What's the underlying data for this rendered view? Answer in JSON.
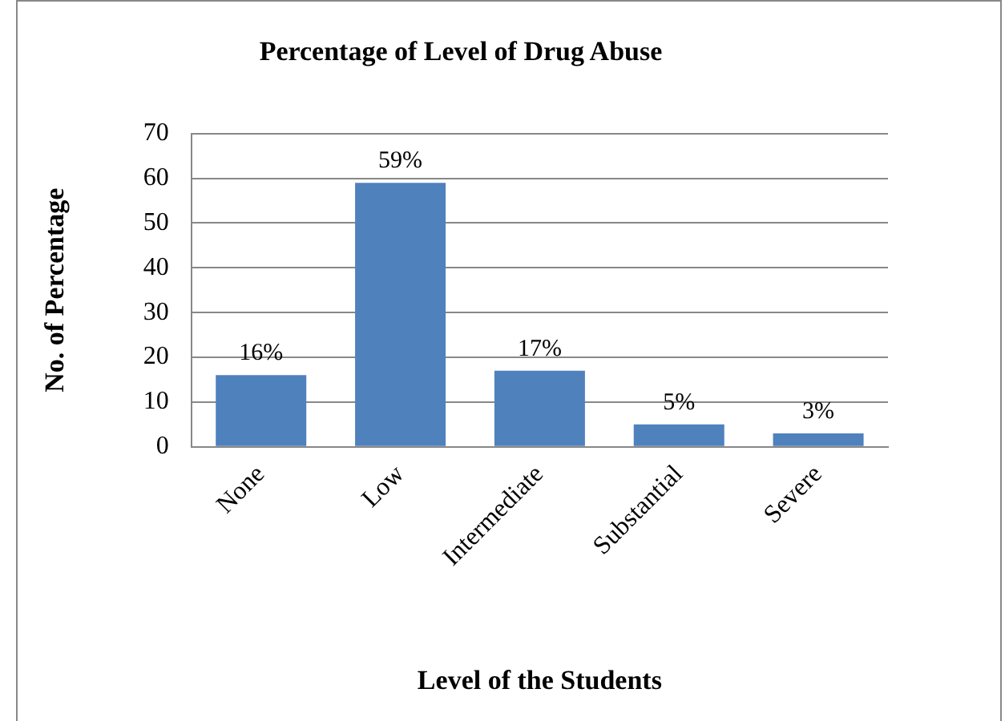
{
  "chart_data": {
    "type": "bar",
    "title": "Percentage of Level of Drug Abuse",
    "xlabel": "Level of the Students",
    "ylabel": "No. of Percentage",
    "categories": [
      "None",
      "Low",
      "Intermediate",
      "Substantial",
      "Severe"
    ],
    "values": [
      16,
      59,
      17,
      5,
      3
    ],
    "color": "#4f81bd",
    "value_labels": [
      "16%",
      "59%",
      "17%",
      "5%",
      "3%"
    ],
    "ylim": [
      0,
      70
    ],
    "yticks": [
      0,
      10,
      20,
      30,
      40,
      50,
      60,
      70
    ],
    "grid": "y",
    "legend": false
  }
}
